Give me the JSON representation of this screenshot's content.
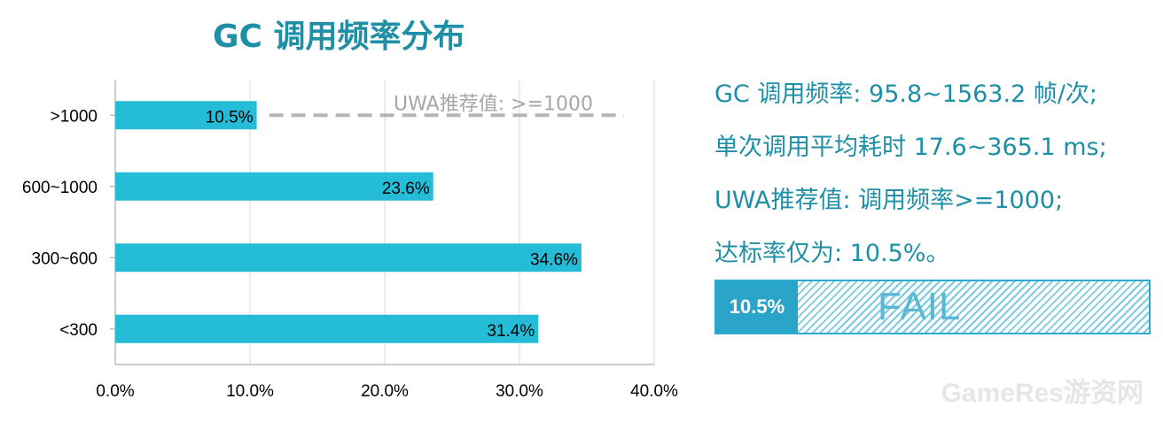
{
  "chart_data": {
    "type": "bar",
    "orientation": "horizontal",
    "title": "GC 调用频率分布",
    "categories": [
      ">1000",
      "600~1000",
      "300~600",
      "<300"
    ],
    "values": [
      10.5,
      23.6,
      34.6,
      31.4
    ],
    "value_labels": [
      "10.5%",
      "23.6%",
      "34.6%",
      "31.4%"
    ],
    "xlim": [
      0,
      40
    ],
    "x_ticks": [
      "0.0%",
      "10.0%",
      "20.0%",
      "30.0%",
      "40.0%"
    ],
    "grid": true,
    "bar_color": "#24bcd6",
    "reference_line": {
      "category": ">1000",
      "label": "UWA推荐值: >=1000",
      "style": "dashed",
      "color": "#b5b5b5"
    }
  },
  "info": {
    "lines": [
      "GC 调用频率: 95.8~1563.2 帧/次;",
      "单次调用平均耗时 17.6~365.1 ms;",
      "UWA推荐值: 调用频率>=1000;",
      "达标率仅为: 10.5%。"
    ],
    "color": "#1e8fa6"
  },
  "status": {
    "percent_label": "10.5%",
    "fraction": 0.105,
    "result": "FAIL"
  },
  "watermark": "GameRes游资网"
}
